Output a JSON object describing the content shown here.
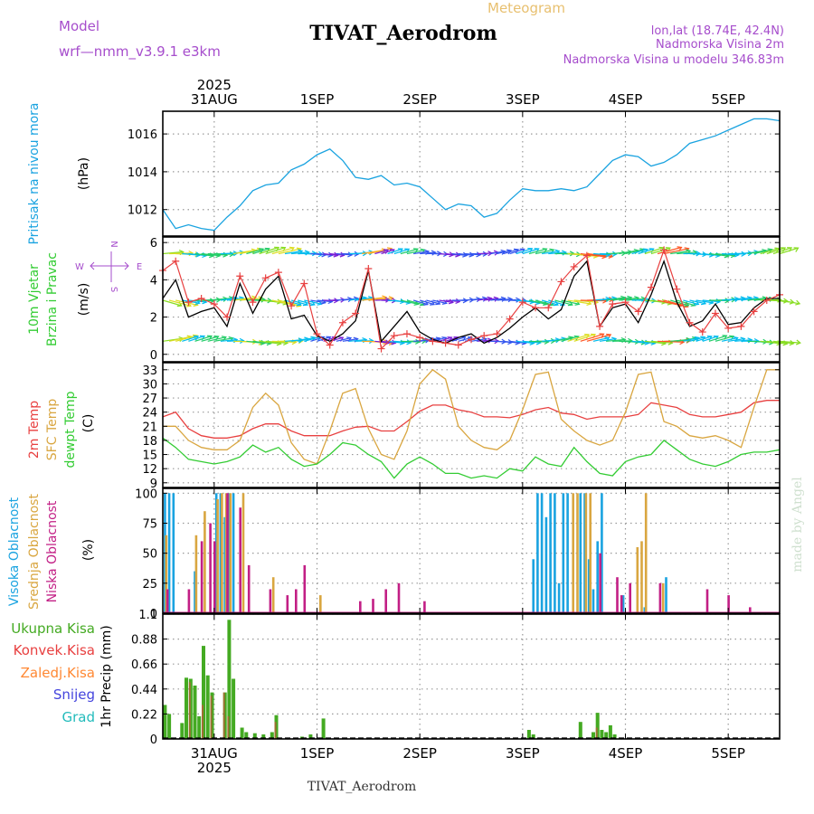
{
  "header": {
    "title": "TIVAT_Aerodrom",
    "subtitle": "Meteogram",
    "model_label": "Model",
    "model_name": "wrf—nmm_v3.9.1  e3km",
    "lonlat": "lon,lat (18.74E, 42.4N)",
    "elevation": "Nadmorska Visina 2m",
    "model_elevation": "Nadmorska Visina u modelu 346.83m",
    "footer_station": "TIVAT_Aerodrom",
    "credit": "made by Angel"
  },
  "time_axis": {
    "year": "2025",
    "start": "2025-08-30T12:00",
    "end": "2025-09-05T12:00",
    "day_ticks": [
      "31AUG",
      "1SEP",
      "2SEP",
      "3SEP",
      "4SEP",
      "5SEP"
    ]
  },
  "colors": {
    "pressure": "#1aa3e0",
    "wind_speed": "#000000",
    "wind_gust": "#e84040",
    "temp2m": "#e84040",
    "sfc_temp": "#d9a640",
    "dewpoint": "#33cc33",
    "cloud_high": "#1aa3e0",
    "cloud_mid": "#d9a640",
    "cloud_low": "#c21f85",
    "precip_total": "#44aa22",
    "precip_conv": "#e84040",
    "precip_frozen": "#ff8833",
    "snow": "#4444dd",
    "hail": "#22bbbb",
    "label_purple": "#a64dcc",
    "label_orange": "#e8c070"
  },
  "chart_data": [
    {
      "id": "pressure",
      "type": "line",
      "ylabel_name": "Pritisak na nivou mora",
      "ylabel_unit": "(hPa)",
      "ylim": [
        1010.6,
        1017.2
      ],
      "yticks": [
        1012,
        1014,
        1016
      ],
      "x": [
        0,
        3,
        6,
        9,
        12,
        15,
        18,
        21,
        24,
        27,
        30,
        33,
        36,
        39,
        42,
        45,
        48,
        51,
        54,
        57,
        60,
        63,
        66,
        69,
        72,
        75,
        78,
        81,
        84,
        87,
        90,
        93,
        96,
        99,
        102,
        105,
        108,
        111,
        114,
        117,
        120,
        123,
        126,
        129,
        132,
        135,
        138,
        141,
        144
      ],
      "y": [
        1012.0,
        1011.0,
        1011.2,
        1011.0,
        1010.9,
        1011.6,
        1012.2,
        1013.0,
        1013.3,
        1013.4,
        1014.1,
        1014.4,
        1014.9,
        1015.2,
        1014.6,
        1013.7,
        1013.6,
        1013.8,
        1013.3,
        1013.4,
        1013.2,
        1012.6,
        1012.0,
        1012.3,
        1012.2,
        1011.6,
        1011.8,
        1012.5,
        1013.1,
        1013.0,
        1013.0,
        1013.1,
        1013.0,
        1013.2,
        1013.9,
        1014.6,
        1014.9,
        1014.8,
        1014.3,
        1014.5,
        1014.9,
        1015.5,
        1015.7,
        1015.9,
        1016.2,
        1016.5,
        1016.8,
        1016.8,
        1016.7
      ]
    },
    {
      "id": "wind",
      "type": "line",
      "ylabel_name": "10m Vjetar",
      "ylabel_name2": "Brzina i Pravac",
      "ylabel_unit": "(m/s)",
      "compass": {
        "n": "N",
        "s": "S",
        "w": "W",
        "e": "E"
      },
      "ylim": [
        -0.4,
        6.3
      ],
      "yticks": [
        0,
        2,
        4,
        6
      ],
      "x": [
        0,
        3,
        6,
        9,
        12,
        15,
        18,
        21,
        24,
        27,
        30,
        33,
        36,
        39,
        42,
        45,
        48,
        51,
        54,
        57,
        60,
        63,
        66,
        69,
        72,
        75,
        78,
        81,
        84,
        87,
        90,
        93,
        96,
        99,
        102,
        105,
        108,
        111,
        114,
        117,
        120,
        123,
        126,
        129,
        132,
        135,
        138,
        141,
        144
      ],
      "speed": [
        3.0,
        4.0,
        2.0,
        2.3,
        2.5,
        1.5,
        3.8,
        2.2,
        3.5,
        4.2,
        1.9,
        2.1,
        1.0,
        0.7,
        1.1,
        1.8,
        4.5,
        0.7,
        1.5,
        2.3,
        1.2,
        0.8,
        0.6,
        0.9,
        1.1,
        0.6,
        0.9,
        1.4,
        2.0,
        2.5,
        1.9,
        2.4,
        4.2,
        5.0,
        1.5,
        2.5,
        2.7,
        1.7,
        3.2,
        5.0,
        2.8,
        1.5,
        1.8,
        2.7,
        1.6,
        1.7,
        2.5,
        3.0,
        3.0
      ],
      "gust": [
        4.5,
        5.0,
        2.8,
        3.0,
        2.7,
        2.0,
        4.2,
        2.8,
        4.1,
        4.4,
        2.6,
        3.8,
        1.1,
        0.5,
        1.7,
        2.2,
        4.6,
        0.3,
        1.0,
        1.1,
        0.9,
        0.7,
        0.6,
        0.5,
        0.8,
        1.0,
        1.1,
        1.9,
        2.8,
        2.5,
        2.5,
        3.9,
        4.7,
        5.3,
        1.5,
        2.7,
        2.8,
        2.3,
        3.6,
        5.6,
        3.5,
        1.7,
        1.2,
        2.2,
        1.4,
        1.5,
        2.3,
        2.9,
        3.2
      ],
      "arrow_rows_ms": [
        5.4,
        2.9,
        0.7
      ]
    },
    {
      "id": "temperature",
      "type": "line",
      "ylabel_name": "2m Temp",
      "ylabel_name2": "SFC Temp",
      "ylabel_name3": "dewpt Temp",
      "ylabel_unit": "(C)",
      "ylim": [
        8,
        34.5
      ],
      "yticks": [
        9,
        12,
        15,
        18,
        21,
        24,
        27,
        30,
        33
      ],
      "x": [
        0,
        3,
        6,
        9,
        12,
        15,
        18,
        21,
        24,
        27,
        30,
        33,
        36,
        39,
        42,
        45,
        48,
        51,
        54,
        57,
        60,
        63,
        66,
        69,
        72,
        75,
        78,
        81,
        84,
        87,
        90,
        93,
        96,
        99,
        102,
        105,
        108,
        111,
        114,
        117,
        120,
        123,
        126,
        129,
        132,
        135,
        138,
        141,
        144
      ],
      "t2m": [
        23.0,
        24.0,
        20.5,
        19.0,
        18.5,
        18.5,
        19.0,
        20.5,
        21.5,
        21.5,
        20.0,
        19.0,
        19.0,
        19.0,
        20.0,
        20.8,
        21.0,
        20.0,
        20.0,
        22.0,
        24.2,
        25.5,
        25.5,
        24.5,
        24.0,
        23.0,
        23.0,
        22.8,
        23.5,
        24.5,
        25.0,
        23.8,
        23.5,
        22.5,
        23.0,
        23.0,
        23.0,
        23.5,
        26.0,
        25.5,
        25.0,
        23.5,
        23.0,
        23.0,
        23.5,
        24.0,
        26.0,
        26.5,
        26.5
      ],
      "sfc": [
        21.0,
        21.0,
        18.0,
        16.5,
        16.0,
        16.0,
        18.0,
        25.0,
        28.0,
        25.5,
        17.5,
        14.0,
        13.0,
        20.0,
        28.0,
        29.0,
        20.5,
        15.0,
        14.0,
        20.0,
        30.0,
        33.0,
        31.0,
        21.0,
        18.0,
        16.5,
        16.0,
        18.0,
        24.5,
        32.0,
        32.5,
        22.5,
        20.0,
        18.0,
        17.0,
        18.0,
        24.0,
        32.0,
        32.5,
        22.0,
        21.0,
        19.0,
        18.5,
        19.0,
        18.0,
        16.5,
        25.0,
        33.0,
        33.0
      ],
      "dewpt": [
        18.5,
        16.5,
        14.0,
        13.5,
        13.0,
        13.5,
        14.5,
        17.0,
        15.5,
        16.5,
        14.0,
        12.5,
        13.0,
        15.0,
        17.5,
        17.0,
        15.0,
        13.5,
        10.0,
        13.0,
        14.5,
        13.0,
        11.0,
        11.0,
        10.0,
        10.5,
        10.0,
        12.0,
        11.5,
        14.5,
        13.0,
        12.5,
        16.5,
        13.5,
        11.0,
        10.5,
        13.5,
        14.5,
        15.0,
        18.0,
        16.0,
        14.0,
        13.0,
        12.5,
        13.5,
        15.0,
        15.5,
        15.5,
        16.0
      ]
    },
    {
      "id": "clouds",
      "type": "bar",
      "ylabel_name": "Visoka Oblacnost",
      "ylabel_name2": "Srednja Oblacnost",
      "ylabel_name3": "Niska Oblacnost",
      "ylabel_unit": "(%)",
      "ylim": [
        0,
        104
      ],
      "yticks": [
        0,
        25,
        50,
        75,
        100
      ],
      "high": [
        [
          0.5,
          100
        ],
        [
          1.5,
          100
        ],
        [
          2.5,
          100
        ],
        [
          7.5,
          35
        ],
        [
          12.5,
          100
        ],
        [
          13.5,
          100
        ],
        [
          14.5,
          80
        ],
        [
          15.5,
          100
        ],
        [
          16.5,
          100
        ],
        [
          86.5,
          45
        ],
        [
          87.5,
          100
        ],
        [
          88.5,
          100
        ],
        [
          89.5,
          80
        ],
        [
          90.5,
          100
        ],
        [
          91.5,
          100
        ],
        [
          92.5,
          25
        ],
        [
          93.5,
          100
        ],
        [
          94.5,
          100
        ],
        [
          97.5,
          100
        ],
        [
          98.5,
          100
        ],
        [
          99.5,
          45
        ],
        [
          100.5,
          20
        ],
        [
          101.5,
          60
        ],
        [
          102.5,
          100
        ],
        [
          107.5,
          15
        ],
        [
          112.5,
          5
        ],
        [
          117.5,
          30
        ]
      ],
      "mid": [
        [
          0.5,
          65
        ],
        [
          7.5,
          65
        ],
        [
          9.5,
          85
        ],
        [
          12.5,
          95
        ],
        [
          13.5,
          100
        ],
        [
          14.5,
          100
        ],
        [
          15.5,
          100
        ],
        [
          18.5,
          100
        ],
        [
          25.5,
          30
        ],
        [
          36.5,
          15
        ],
        [
          95.5,
          100
        ],
        [
          96.5,
          100
        ],
        [
          98.5,
          100
        ],
        [
          99.5,
          100
        ],
        [
          110.5,
          55
        ],
        [
          111.5,
          60
        ],
        [
          112.5,
          100
        ],
        [
          116.5,
          25
        ]
      ],
      "low": [
        [
          0.5,
          20
        ],
        [
          5.5,
          20
        ],
        [
          8.5,
          60
        ],
        [
          10.5,
          75
        ],
        [
          11.5,
          60
        ],
        [
          14.5,
          100
        ],
        [
          17.5,
          88
        ],
        [
          19.5,
          40
        ],
        [
          24.5,
          20
        ],
        [
          28.5,
          15
        ],
        [
          30.5,
          20
        ],
        [
          32.5,
          40
        ],
        [
          45.5,
          10
        ],
        [
          48.5,
          12
        ],
        [
          51.5,
          20
        ],
        [
          54.5,
          25
        ],
        [
          60.5,
          10
        ],
        [
          101.5,
          50
        ],
        [
          105.5,
          30
        ],
        [
          106.5,
          15
        ],
        [
          108.5,
          25
        ],
        [
          115.5,
          25
        ],
        [
          126.5,
          20
        ],
        [
          131.5,
          15
        ],
        [
          136.5,
          5
        ]
      ]
    },
    {
      "id": "precip",
      "type": "bar",
      "legend": [
        "Ukupna Kisa",
        "Konvek.Kisa",
        "Zaledj.Kisa",
        "Snijeg",
        "Grad"
      ],
      "ylabel_name": "1hr Precip",
      "ylabel_unit": "(mm)",
      "ylim": [
        0,
        1.1
      ],
      "yticks": [
        0,
        0.22,
        0.44,
        0.66,
        0.88,
        1.1
      ],
      "ytick_labels": [
        "0",
        "0.22",
        "0.44",
        "0.66",
        "0.88",
        "1.1"
      ],
      "total": [
        [
          0.5,
          0.3
        ],
        [
          1.5,
          0.22
        ],
        [
          4.5,
          0.14
        ],
        [
          5.5,
          0.54
        ],
        [
          6.5,
          0.53
        ],
        [
          7.5,
          0.47
        ],
        [
          8.5,
          0.2
        ],
        [
          9.5,
          0.82
        ],
        [
          10.5,
          0.56
        ],
        [
          11.5,
          0.41
        ],
        [
          14.5,
          0.41
        ],
        [
          15.5,
          1.05
        ],
        [
          16.5,
          0.53
        ],
        [
          18.5,
          0.1
        ],
        [
          19.5,
          0.06
        ],
        [
          21.5,
          0.05
        ],
        [
          23.5,
          0.04
        ],
        [
          25.5,
          0.06
        ],
        [
          26.5,
          0.21
        ],
        [
          32.5,
          0.02
        ],
        [
          34.5,
          0.04
        ],
        [
          37.5,
          0.18
        ],
        [
          85.5,
          0.08
        ],
        [
          86.5,
          0.04
        ],
        [
          97.5,
          0.15
        ],
        [
          100.5,
          0.06
        ],
        [
          101.5,
          0.23
        ],
        [
          102.5,
          0.08
        ],
        [
          103.5,
          0.06
        ],
        [
          104.5,
          0.12
        ],
        [
          105.5,
          0.04
        ]
      ],
      "convective": [
        [
          6.5,
          0.5
        ],
        [
          9.5,
          0.3
        ],
        [
          11.5,
          0.38
        ],
        [
          14.5,
          0.41
        ],
        [
          15.5,
          0.2
        ],
        [
          26.5,
          0.15
        ],
        [
          101.5,
          0.1
        ]
      ]
    }
  ]
}
